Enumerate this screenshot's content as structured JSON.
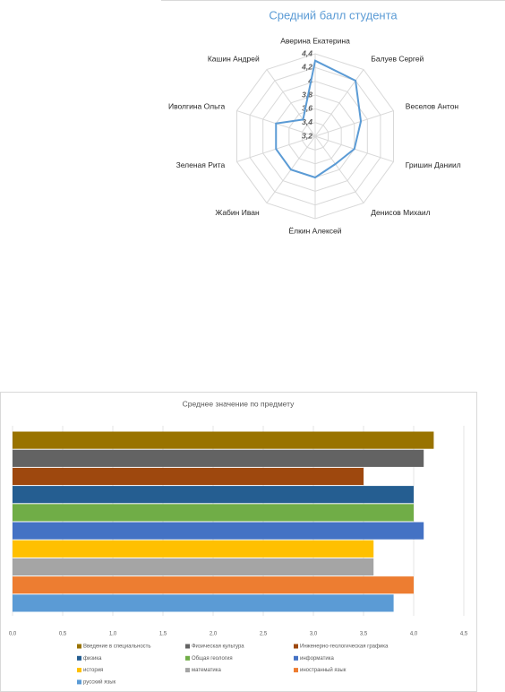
{
  "chart_data": [
    {
      "type": "radar",
      "title": "Средний балл студента",
      "categories": [
        "Аверина Екатерина",
        "Балуев Сергей",
        "Веселов Антон",
        "Гришин Даниил",
        "Денисов Михаил",
        "Ёлкин Алексей",
        "Жабин Иван",
        "Зеленая Рита",
        "Иволгина Ольга",
        "Кашин Андрей"
      ],
      "values": [
        4.3,
        4.2,
        3.9,
        3.8,
        3.7,
        3.8,
        3.8,
        3.8,
        3.8,
        3.5
      ],
      "color": "#5b9bd5",
      "rlim": [
        3.2,
        4.4
      ],
      "rticks": [
        {
          "value": 3.2,
          "label": "3,2"
        },
        {
          "value": 3.4,
          "label": "3,4"
        },
        {
          "value": 3.6,
          "label": "3,6"
        },
        {
          "value": 3.8,
          "label": "3,8"
        },
        4,
        {
          "value": 4.2,
          "label": "4,2"
        },
        {
          "value": 4.4,
          "label": "4,4"
        }
      ],
      "grid": true
    },
    {
      "type": "bar",
      "orientation": "horizontal",
      "title": "Среднее значение по предмету",
      "series": [
        {
          "name": "Введение в специальность",
          "color": "#997300",
          "values": [
            4.2
          ]
        },
        {
          "name": "Физическая культура",
          "color": "#636363",
          "values": [
            4.1
          ]
        },
        {
          "name": "Инженерно-геологическая графика",
          "color": "#9e480e",
          "values": [
            3.5
          ]
        },
        {
          "name": "физика",
          "color": "#255e91",
          "values": [
            4.0
          ]
        },
        {
          "name": "Общая геология",
          "color": "#70ad47",
          "values": [
            4.0
          ]
        },
        {
          "name": "информатика",
          "color": "#4472c4",
          "values": [
            4.1
          ]
        },
        {
          "name": "история",
          "color": "#ffc000",
          "values": [
            3.6
          ]
        },
        {
          "name": "математика",
          "color": "#a5a5a5",
          "values": [
            3.6
          ]
        },
        {
          "name": "иностранный язык",
          "color": "#ed7d31",
          "values": [
            4.0
          ]
        },
        {
          "name": "русский язык",
          "color": "#5b9bd5",
          "values": [
            3.8
          ]
        }
      ],
      "xlim": [
        0,
        4.5
      ],
      "xticks": [
        {
          "value": 0,
          "label": "0,0"
        },
        {
          "value": 0.5,
          "label": "0,5"
        },
        {
          "value": 1,
          "label": "1,0"
        },
        {
          "value": 1.5,
          "label": "1,5"
        },
        {
          "value": 2,
          "label": "2,0"
        },
        {
          "value": 2.5,
          "label": "2,5"
        },
        {
          "value": 3,
          "label": "3,0"
        },
        {
          "value": 3.5,
          "label": "3,5"
        },
        {
          "value": 4,
          "label": "4,0"
        },
        {
          "value": 4.5,
          "label": "4,5"
        }
      ],
      "grid": true,
      "legend": "bottom"
    }
  ]
}
